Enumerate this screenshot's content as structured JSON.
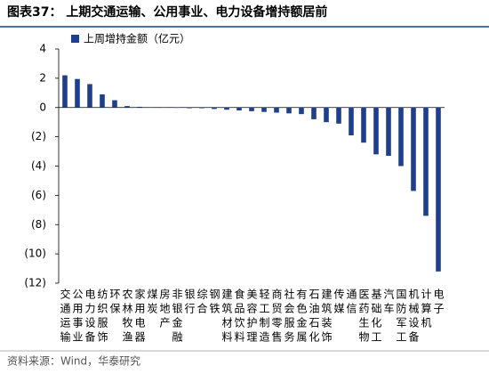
{
  "chart_data": {
    "type": "bar",
    "title": "图表37：  上期交通运输、公用事业、电力设备增持额居前",
    "legend": "上周增持金额（亿元）",
    "source": "资料来源：Wind，华泰研究",
    "color": "#1f3f8a",
    "categories": [
      "交通运输",
      "公用事业",
      "电力设备",
      "纺织服饰",
      "环保",
      "农林牧渔",
      "家用电器",
      "煤炭",
      "房地产",
      "非银金融",
      "银行",
      "综合",
      "钢铁",
      "建筑材料",
      "食品饮料",
      "美容护理",
      "轻工制造",
      "商贸零售",
      "社会服务",
      "有色金属",
      "石油石化",
      "建筑装饰",
      "传媒",
      "通信",
      "医药生物",
      "基础化工",
      "汽车",
      "国防军工",
      "机械设备",
      "计算机",
      "电子"
    ],
    "values": [
      2.2,
      1.95,
      1.6,
      0.9,
      0.5,
      0.1,
      0.05,
      0.02,
      0.01,
      -0.02,
      -0.05,
      -0.05,
      -0.1,
      -0.15,
      -0.2,
      -0.25,
      -0.3,
      -0.35,
      -0.4,
      -0.45,
      -0.8,
      -1.0,
      -1.1,
      -1.9,
      -2.4,
      -3.2,
      -3.3,
      -4.0,
      -5.7,
      -7.4,
      -11.2
    ],
    "ylim": [
      -12,
      4
    ],
    "yticks": [
      4,
      2,
      0,
      {
        "value": -2,
        "label": "(2)"
      },
      {
        "value": -4,
        "label": "(4)"
      },
      {
        "value": -6,
        "label": "(6)"
      },
      {
        "value": -8,
        "label": "(8)"
      },
      {
        "value": -10,
        "label": "(10)"
      },
      {
        "value": -12,
        "label": "(12)"
      }
    ]
  }
}
